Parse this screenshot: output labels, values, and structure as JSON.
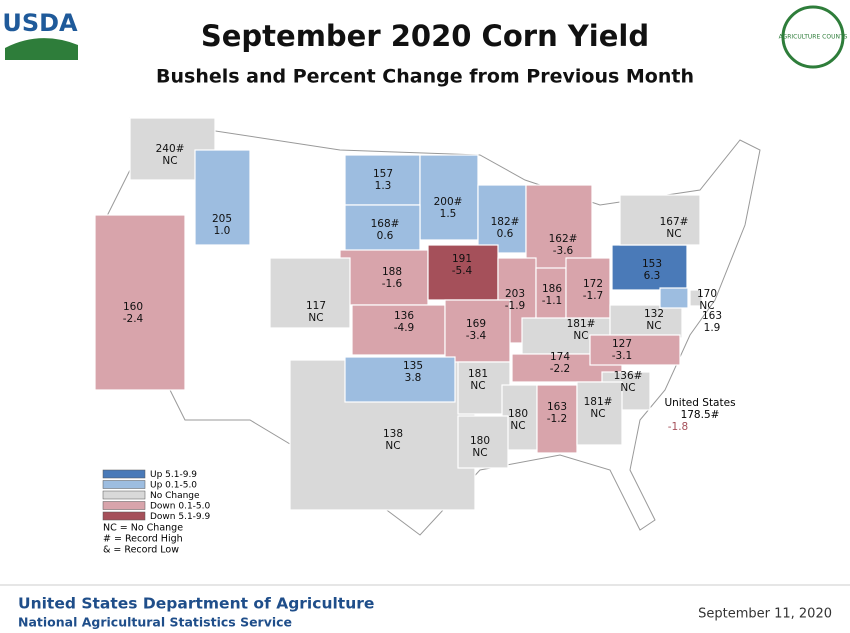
{
  "header": {
    "logo": "USDA",
    "title": "September 2020 Corn Yield",
    "subtitle": "Bushels and Percent Change from Previous Month",
    "badge": "AGRICULTURE COUNTS"
  },
  "states": [
    {
      "yield": "138",
      "change": "NC",
      "color": "#d9d9d9"
    },
    {
      "yield": "240#",
      "change": "NC",
      "color": "#d9d9d9"
    },
    {
      "yield": "205",
      "change": "1.0",
      "color": "#9dbde0"
    },
    {
      "yield": "157",
      "change": "1.3",
      "color": "#9dbde0"
    },
    {
      "yield": "200#",
      "change": "1.5",
      "color": "#9dbde0"
    },
    {
      "yield": "168#",
      "change": "0.6",
      "color": "#9dbde0"
    },
    {
      "yield": "182#",
      "change": "0.6",
      "color": "#9dbde0"
    },
    {
      "yield": "162#",
      "change": "-3.6",
      "color": "#d8a4ab"
    },
    {
      "yield": "160",
      "change": "-2.4",
      "color": "#d8a4ab"
    },
    {
      "yield": "188",
      "change": "-1.6",
      "color": "#d8a4ab"
    },
    {
      "yield": "191",
      "change": "-5.4",
      "color": "#a5505a"
    },
    {
      "yield": "203",
      "change": "-1.9",
      "color": "#d8a4ab"
    },
    {
      "yield": "186",
      "change": "-1.1",
      "color": "#d8a4ab"
    },
    {
      "yield": "172",
      "change": "-1.7",
      "color": "#d8a4ab"
    },
    {
      "yield": "153",
      "change": "6.3",
      "color": "#4a7ab8"
    },
    {
      "yield": "117",
      "change": "NC",
      "color": "#d9d9d9"
    },
    {
      "yield": "136",
      "change": "-4.9",
      "color": "#d8a4ab"
    },
    {
      "yield": "169",
      "change": "-3.4",
      "color": "#d8a4ab"
    },
    {
      "yield": "181#",
      "change": "NC",
      "color": "#d9d9d9"
    },
    {
      "yield": "132",
      "change": "NC",
      "color": "#d9d9d9"
    },
    {
      "yield": "167#",
      "change": "NC",
      "color": "#d9d9d9"
    },
    {
      "yield": "170",
      "change": "NC",
      "color": "#d9d9d9"
    },
    {
      "yield": "163",
      "change": "1.9",
      "color": "#9dbde0"
    },
    {
      "yield": "174",
      "change": "-2.2",
      "color": "#d8a4ab"
    },
    {
      "yield": "127",
      "change": "-3.1",
      "color": "#d8a4ab"
    },
    {
      "yield": "135",
      "change": "3.8",
      "color": "#9dbde0"
    },
    {
      "yield": "181",
      "change": "NC",
      "color": "#d9d9d9"
    },
    {
      "yield": "136#",
      "change": "NC",
      "color": "#d9d9d9"
    },
    {
      "yield": "180",
      "change": "NC",
      "color": "#d9d9d9"
    },
    {
      "yield": "163",
      "change": "-1.2",
      "color": "#d8a4ab"
    },
    {
      "yield": "181#",
      "change": "NC",
      "color": "#d9d9d9"
    },
    {
      "yield": "180",
      "change": "NC",
      "color": "#d9d9d9"
    }
  ],
  "us_total": {
    "label": "United States",
    "yield": "178.5#",
    "change": "-1.8"
  },
  "legend": {
    "items": [
      {
        "label": "Up 5.1-9.9",
        "color": "#4a7ab8"
      },
      {
        "label": "Up 0.1-5.0",
        "color": "#9dbde0"
      },
      {
        "label": "No Change",
        "color": "#d9d9d9"
      },
      {
        "label": "Down 0.1-5.0",
        "color": "#d8a4ab"
      },
      {
        "label": "Down 5.1-9.9",
        "color": "#a5505a"
      }
    ],
    "notes": [
      "NC = No Change",
      "# = Record High",
      "& = Record Low"
    ]
  },
  "footer": {
    "department": "United States Department of Agriculture",
    "agency": "National Agricultural Statistics Service",
    "date": "September 11, 2020"
  }
}
